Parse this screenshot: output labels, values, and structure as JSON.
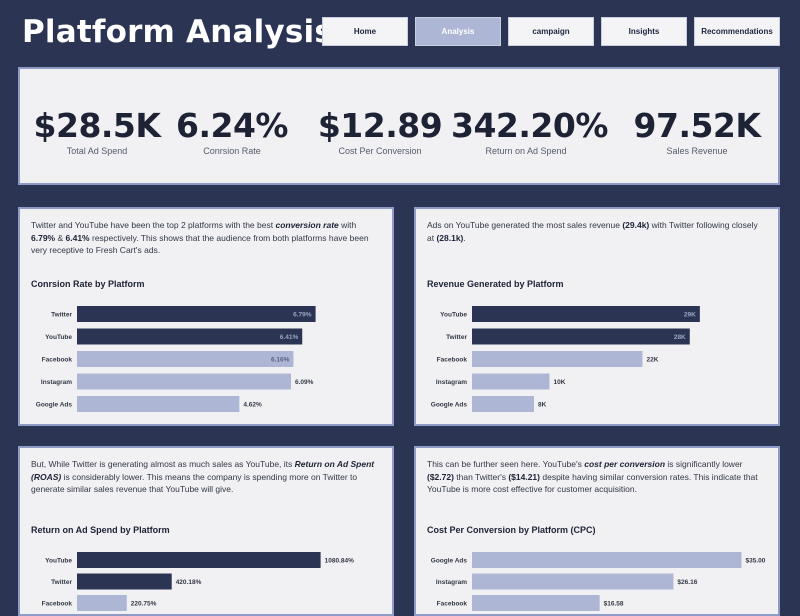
{
  "header": {
    "title": "Platform Analysis",
    "nav": [
      "Home",
      "Analysis",
      "campaign",
      "Insights",
      "Recommendations"
    ],
    "active_nav": "Analysis"
  },
  "kpis": [
    {
      "value": "$28.5K",
      "label": "Total Ad Spend"
    },
    {
      "value": "6.24%",
      "label": "Conrsion Rate"
    },
    {
      "value": "$12.89",
      "label": "Cost Per Conversion"
    },
    {
      "value": "342.20%",
      "label": "Return on Ad Spend"
    },
    {
      "value": "97.52K",
      "label": "Sales Revenue"
    }
  ],
  "panels": {
    "conversion": {
      "text_parts": [
        {
          "t": "Twitter and YouTube have been the top 2 platforms with the best ",
          "s": ""
        },
        {
          "t": "conversion rate",
          "s": "bi"
        },
        {
          "t": " with ",
          "s": ""
        },
        {
          "t": "6.79%",
          "s": "b"
        },
        {
          "t": " & ",
          "s": ""
        },
        {
          "t": "6.41%",
          "s": "b"
        },
        {
          "t": " respectively. This shows that the audience from both platforms have been very receptive to Fresh Cart's ads.",
          "s": ""
        }
      ]
    },
    "revenue": {
      "text_parts": [
        {
          "t": "Ads on YouTube generated the most sales revenue ",
          "s": ""
        },
        {
          "t": "(29.4k)",
          "s": "b"
        },
        {
          "t": " with Twitter following closely at ",
          "s": ""
        },
        {
          "t": "(28.1k)",
          "s": "b"
        },
        {
          "t": ".",
          "s": ""
        }
      ]
    },
    "roas": {
      "text_parts": [
        {
          "t": "But, While Twitter is generating almost as much sales as YouTube, its ",
          "s": ""
        },
        {
          "t": "Return on Ad Spent (ROAS)",
          "s": "bi"
        },
        {
          "t": " is considerably lower. This means the company is spending more on Twitter to generate similar sales revenue that YouTube will give.",
          "s": ""
        }
      ]
    },
    "cpc": {
      "text_parts": [
        {
          "t": "This can be further seen here. YouTube's ",
          "s": ""
        },
        {
          "t": "cost per conversion",
          "s": "bi"
        },
        {
          "t": " is significantly lower ",
          "s": ""
        },
        {
          "t": "($2.72)",
          "s": "b"
        },
        {
          "t": " than Twitter's ",
          "s": ""
        },
        {
          "t": "($14.21)",
          "s": "b"
        },
        {
          "t": " despite having similar conversion rates. This indicate that YouTube is more cost  effective for customer acquisition.",
          "s": ""
        }
      ]
    }
  },
  "chart_data": [
    {
      "id": "conversion",
      "type": "bar",
      "orientation": "horizontal",
      "title": "Conrsion Rate by Platform",
      "categories": [
        "Twitter",
        "YouTube",
        "Facebook",
        "Instagram",
        "Google Ads"
      ],
      "values": [
        6.79,
        6.41,
        6.16,
        6.09,
        4.62
      ],
      "value_labels": [
        "6.79%",
        "6.41%",
        "6.16%",
        "6.09%",
        "4.62%"
      ],
      "highlight": [
        true,
        true,
        false,
        false,
        false
      ],
      "xlim": [
        0,
        7.2
      ]
    },
    {
      "id": "revenue",
      "type": "bar",
      "orientation": "horizontal",
      "title": "Revenue Generated by Platform",
      "categories": [
        "YouTube",
        "Twitter",
        "Facebook",
        "Instagram",
        "Google Ads"
      ],
      "values": [
        29.4,
        28.1,
        22,
        10,
        8
      ],
      "value_labels": [
        "29K",
        "28K",
        "22K",
        "10K",
        "8K"
      ],
      "highlight": [
        true,
        true,
        false,
        false,
        false
      ],
      "xlim": [
        0,
        32
      ]
    },
    {
      "id": "roas",
      "type": "bar",
      "orientation": "horizontal",
      "title": "Return on Ad Spend by Platform",
      "categories": [
        "YouTube",
        "Twitter",
        "Facebook"
      ],
      "values": [
        1080.84,
        420.18,
        220.75
      ],
      "value_labels": [
        "1080.84%",
        "420.18%",
        "220.75%"
      ],
      "highlight": [
        true,
        true,
        false
      ],
      "xlim": [
        0,
        1300
      ]
    },
    {
      "id": "cpc",
      "type": "bar",
      "orientation": "horizontal",
      "title": "Cost Per Conversion by Platform (CPC)",
      "categories": [
        "Google Ads",
        "Instagram",
        "Facebook"
      ],
      "values": [
        35.0,
        26.16,
        16.58
      ],
      "value_labels": [
        "$35.00",
        "$26.16",
        "$16.58"
      ],
      "highlight": [
        false,
        false,
        false
      ],
      "xlim": [
        0,
        40
      ]
    }
  ],
  "colors": {
    "background": "#2b3553",
    "highlight_bar": "#2b3553",
    "normal_bar": "#aeb6d6",
    "panel": "#f1f1f3",
    "panel_border": "#8e9bc6"
  }
}
